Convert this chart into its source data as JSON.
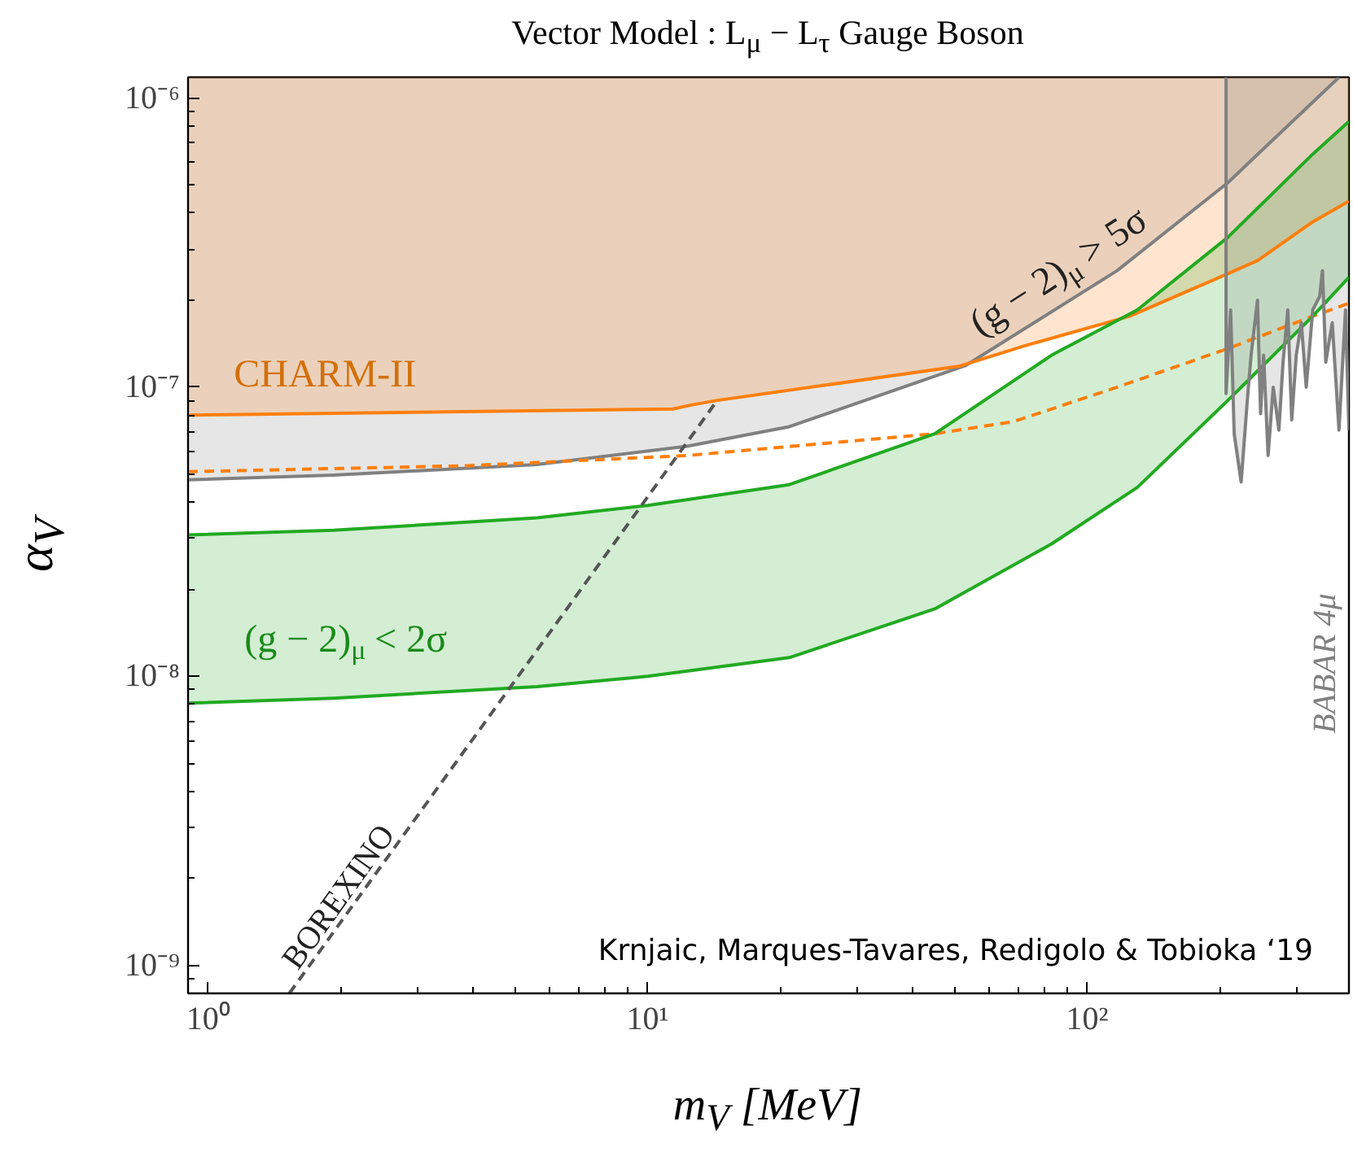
{
  "chart_data": {
    "type": "line",
    "title": "Vector Model : L$_{μ}$ − L$_{τ}$ Gauge Boson",
    "xlabel": "m$_{V}$ [MeV]",
    "ylabel": "α$_{V}$",
    "log": "xy",
    "grid": false,
    "xlim": [
      0.9,
      394
    ],
    "ylim": [
      8e-10,
      1.18e-06
    ],
    "xticks": [
      {
        "value": 1,
        "label": "10⁰"
      },
      {
        "value": 10,
        "label": "10¹"
      },
      {
        "value": 100,
        "label": "10²"
      }
    ],
    "yticks": [
      {
        "value": 1e-09,
        "label": "10⁻⁹"
      },
      {
        "value": 1e-08,
        "label": "10⁻⁸"
      },
      {
        "value": 1e-07,
        "label": "10⁻⁷"
      },
      {
        "value": 1e-06,
        "label": "10⁻⁶"
      }
    ],
    "series": [
      {
        "color": "#808080",
        "line_style": "solid",
        "x": [
          0.9,
          1.93,
          5.6,
          12.3,
          21,
          53,
          117,
          209,
          374
        ],
        "values": [
          4.78e-08,
          4.96e-08,
          5.4e-08,
          6.25e-08,
          7.3e-08,
          1.19e-07,
          2.53e-07,
          5.1e-07,
          1.18e-06
        ],
        "lower": [
          4.78e-08,
          4.96e-08,
          5.4e-08,
          6.25e-08,
          7.3e-08,
          1.19e-07,
          2.53e-07,
          5.1e-07,
          1.18e-06
        ],
        "upper": [
          1.18e-06,
          1.18e-06,
          1.18e-06,
          1.18e-06,
          1.18e-06,
          1.18e-06,
          1.18e-06,
          1.18e-06,
          1.18e-06
        ]
      },
      {
        "color": "#ff7f0e",
        "line_style": "solid",
        "x": [
          0.9,
          11.4,
          12.7,
          14.4,
          51,
          72,
          125,
          209,
          244,
          326,
          394
        ],
        "values": [
          8e-08,
          8.4e-08,
          8.7e-08,
          9e-08,
          1.18e-07,
          1.39e-07,
          1.76e-07,
          2.47e-07,
          2.74e-07,
          3.73e-07,
          4.4e-07
        ],
        "lower": [
          8e-08,
          8.4e-08,
          8.7e-08,
          9e-08,
          1.18e-07,
          1.39e-07,
          1.76e-07,
          2.47e-07,
          2.74e-07,
          3.73e-07,
          4.4e-07
        ],
        "upper": [
          1.18e-06,
          1.18e-06,
          1.18e-06,
          1.18e-06,
          1.18e-06,
          1.18e-06,
          1.18e-06,
          1.18e-06,
          1.18e-06,
          1.18e-06,
          1.18e-06
        ]
      },
      {
        "color": "#ff7f0e",
        "line_style": "dashed",
        "x": [
          0.9,
          3.9,
          12.3,
          45,
          68,
          117,
          209,
          326,
          394
        ],
        "values": [
          5.1e-08,
          5.35e-08,
          5.8e-08,
          6.9e-08,
          7.6e-08,
          1e-07,
          1.36e-07,
          1.76e-07,
          1.95e-07
        ]
      },
      {
        "color": "#22aa22",
        "line_style": "solid",
        "x": [
          0.9,
          1.93,
          5.6,
          10,
          21,
          45,
          83,
          130,
          209,
          326,
          394
        ],
        "values": [
          3.08e-08,
          3.2e-08,
          3.53e-08,
          3.9e-08,
          4.6e-08,
          6.9e-08,
          1.29e-07,
          1.85e-07,
          3.3e-07,
          6.4e-07,
          8.3e-07
        ],
        "lower": [
          8.07e-09,
          8.4e-09,
          9.2e-09,
          1e-08,
          1.16e-08,
          1.71e-08,
          2.87e-08,
          4.5e-08,
          9e-08,
          1.76e-07,
          2.4e-07
        ],
        "upper": [
          3.08e-08,
          3.2e-08,
          3.53e-08,
          3.9e-08,
          4.6e-08,
          6.9e-08,
          1.29e-07,
          1.85e-07,
          3.3e-07,
          6.4e-07,
          8.3e-07
        ]
      },
      {
        "color": "#22aa22",
        "line_style": "solid",
        "x": [
          0.9,
          1.93,
          5.6,
          10,
          21,
          45,
          83,
          130,
          209,
          326,
          394
        ],
        "values": [
          8.07e-09,
          8.4e-09,
          9.2e-09,
          1e-08,
          1.16e-08,
          1.71e-08,
          2.87e-08,
          4.5e-08,
          9e-08,
          1.76e-07,
          2.4e-07
        ]
      },
      {
        "color": "#555555",
        "line_style": "dashed",
        "x": [
          1.53,
          14.4
        ],
        "values": [
          8e-10,
          9e-08
        ]
      },
      {
        "color": "#808080",
        "line_style": "solid",
        "x": [
          207,
          207,
          212,
          216,
          224,
          232,
          236,
          244,
          248,
          252,
          258,
          265,
          273,
          279,
          286,
          292,
          299,
          307,
          315,
          326,
          338,
          343,
          349,
          361,
          374,
          387,
          394
        ],
        "values": [
          1.18e-06,
          9.5e-08,
          1.85e-07,
          6.9e-08,
          4.7e-08,
          9.5e-08,
          1.29e-07,
          2e-07,
          8.1e-08,
          1.29e-07,
          5.8e-08,
          1e-07,
          7.1e-08,
          1.22e-07,
          1.85e-07,
          7.7e-08,
          1.29e-07,
          1.67e-07,
          1e-07,
          1.85e-07,
          2.06e-07,
          2.53e-07,
          1.22e-07,
          1.67e-07,
          7.1e-08,
          1.85e-07,
          7.1e-08
        ],
        "lower": [
          1.18e-06,
          9.5e-08,
          1.85e-07,
          6.9e-08,
          4.7e-08,
          9.5e-08,
          1.29e-07,
          2e-07,
          8.1e-08,
          1.29e-07,
          5.8e-08,
          1e-07,
          7.1e-08,
          1.22e-07,
          1.85e-07,
          7.7e-08,
          1.29e-07,
          1.67e-07,
          1e-07,
          1.85e-07,
          2.06e-07,
          2.53e-07,
          1.22e-07,
          1.67e-07,
          7.1e-08,
          1.85e-07,
          7.1e-08
        ],
        "upper": [
          1.18e-06,
          1.18e-06,
          1.18e-06,
          1.18e-06,
          1.18e-06,
          1.18e-06,
          1.18e-06,
          1.18e-06,
          1.18e-06,
          1.18e-06,
          1.18e-06,
          1.18e-06,
          1.18e-06,
          1.18e-06,
          1.18e-06,
          1.18e-06,
          1.18e-06,
          1.18e-06,
          1.18e-06,
          1.18e-06,
          1.18e-06,
          1.18e-06,
          1.18e-06,
          1.18e-06,
          1.18e-06,
          1.18e-06,
          1.18e-06
        ]
      }
    ],
    "annotations": [
      "CHARM-II",
      "(g − 2)$_{μ}$ > 5σ",
      "(g − 2)$_{μ}$ < 2σ",
      "BOREXINO",
      "BABAR 4μ",
      "Krnjaic, Marques-Tavares, Redigolo & Tobioka ‘19"
    ]
  }
}
